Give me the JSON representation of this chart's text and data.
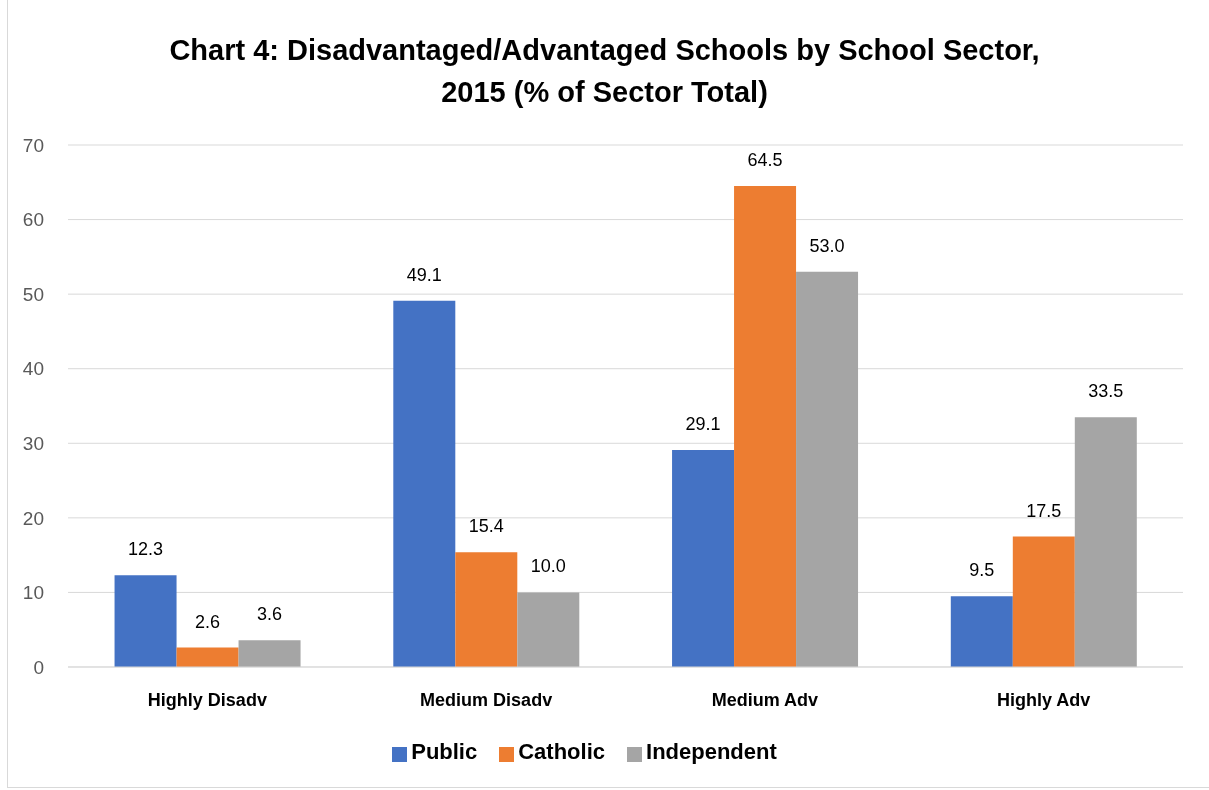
{
  "chart_data": {
    "type": "bar",
    "title": "Chart 4: Disadvantaged/Advantaged Schools by School Sector, 2015 (% of Sector Total)",
    "categories": [
      "Highly Disadv",
      "Medium Disadv",
      "Medium Adv",
      "Highly Adv"
    ],
    "series": [
      {
        "name": "Public",
        "color": "#4472c4",
        "values": [
          12.3,
          49.1,
          29.1,
          9.5
        ],
        "value_labels": [
          "12.3",
          "49.1",
          "29.1",
          "9.5"
        ]
      },
      {
        "name": "Catholic",
        "color": "#ed7d31",
        "values": [
          2.6,
          15.4,
          64.5,
          17.5
        ],
        "value_labels": [
          "2.6",
          "15.4",
          "64.5",
          "17.5"
        ]
      },
      {
        "name": "Independent",
        "color": "#a5a5a5",
        "values": [
          3.6,
          10.0,
          53.0,
          33.5
        ],
        "value_labels": [
          "3.6",
          "10.0",
          "53.0",
          "33.5"
        ]
      }
    ],
    "ylim": [
      0,
      70
    ],
    "yticks": [
      0,
      10,
      20,
      30,
      40,
      50,
      60,
      70
    ],
    "grid": "y",
    "legend": "bottom"
  }
}
